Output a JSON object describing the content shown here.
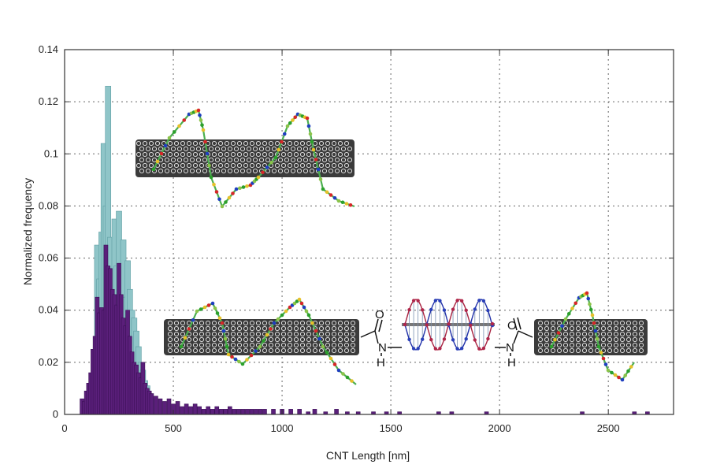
{
  "chart_data": {
    "type": "bar",
    "title": "",
    "xlabel": "CNT Length [nm]",
    "ylabel": "Normalized frequency",
    "xlim": [
      0,
      2800
    ],
    "ylim": [
      0,
      0.14
    ],
    "xticks": [
      0,
      500,
      1000,
      1500,
      2000,
      2500
    ],
    "yticks": [
      0,
      0.02,
      0.04,
      0.06,
      0.08,
      0.1,
      0.12,
      0.14
    ],
    "ytick_labels": [
      "0",
      "0.02",
      "0.04",
      "0.06",
      "0.08",
      "0.1",
      "0.12",
      "0.14"
    ],
    "grid": true,
    "legend": "none",
    "series": [
      {
        "color": "#8fc5c8",
        "x": [
          100,
          120,
          140,
          150,
          160,
          170,
          180,
          190,
          200,
          210,
          220,
          230,
          240,
          250,
          260,
          270,
          280,
          290,
          300,
          310,
          320,
          330,
          340,
          350,
          360,
          370,
          380,
          390,
          400
        ],
        "y": [
          0.004,
          0.01,
          0.02,
          0.065,
          0.052,
          0.07,
          0.104,
          0.08,
          0.126,
          0.068,
          0.05,
          0.075,
          0.057,
          0.078,
          0.055,
          0.067,
          0.045,
          0.059,
          0.048,
          0.04,
          0.037,
          0.032,
          0.026,
          0.02,
          0.017,
          0.013,
          0.011,
          0.008,
          0.006
        ]
      },
      {
        "color": "#5a1f7a",
        "x": [
          80,
          90,
          100,
          110,
          120,
          130,
          140,
          150,
          160,
          170,
          180,
          190,
          200,
          210,
          220,
          230,
          240,
          250,
          260,
          270,
          280,
          290,
          300,
          310,
          320,
          330,
          340,
          350,
          360,
          370,
          380,
          390,
          400,
          420,
          440,
          460,
          480,
          500,
          520,
          540,
          560,
          580,
          600,
          620,
          640,
          660,
          680,
          700,
          720,
          740,
          760,
          780,
          800,
          820,
          840,
          860,
          880,
          900,
          920,
          960,
          1000,
          1040,
          1080,
          1120,
          1150,
          1200,
          1250,
          1300,
          1350,
          1420,
          1480,
          1540,
          1720,
          1780,
          1940,
          2380,
          2620,
          2680
        ],
        "y": [
          0.006,
          0.005,
          0.009,
          0.012,
          0.016,
          0.025,
          0.03,
          0.045,
          0.039,
          0.041,
          0.04,
          0.065,
          0.057,
          0.056,
          0.048,
          0.046,
          0.042,
          0.058,
          0.046,
          0.037,
          0.034,
          0.04,
          0.03,
          0.024,
          0.02,
          0.019,
          0.016,
          0.014,
          0.02,
          0.012,
          0.01,
          0.009,
          0.008,
          0.007,
          0.006,
          0.005,
          0.006,
          0.004,
          0.005,
          0.003,
          0.004,
          0.003,
          0.004,
          0.003,
          0.002,
          0.003,
          0.002,
          0.003,
          0.002,
          0.002,
          0.003,
          0.002,
          0.002,
          0.002,
          0.002,
          0.002,
          0.002,
          0.002,
          0.002,
          0.002,
          0.002,
          0.002,
          0.002,
          0.001,
          0.002,
          0.001,
          0.002,
          0.001,
          0.001,
          0.001,
          0.001,
          0.001,
          0.001,
          0.001,
          0.001,
          0.001,
          0.001,
          0.001
        ]
      }
    ],
    "inset_labels": {
      "oxygen_1": "O",
      "nitrogen_1": "N",
      "hydrogen_1": "H",
      "oxygen_2": "O",
      "nitrogen_2": "N",
      "hydrogen_2": "H"
    }
  }
}
